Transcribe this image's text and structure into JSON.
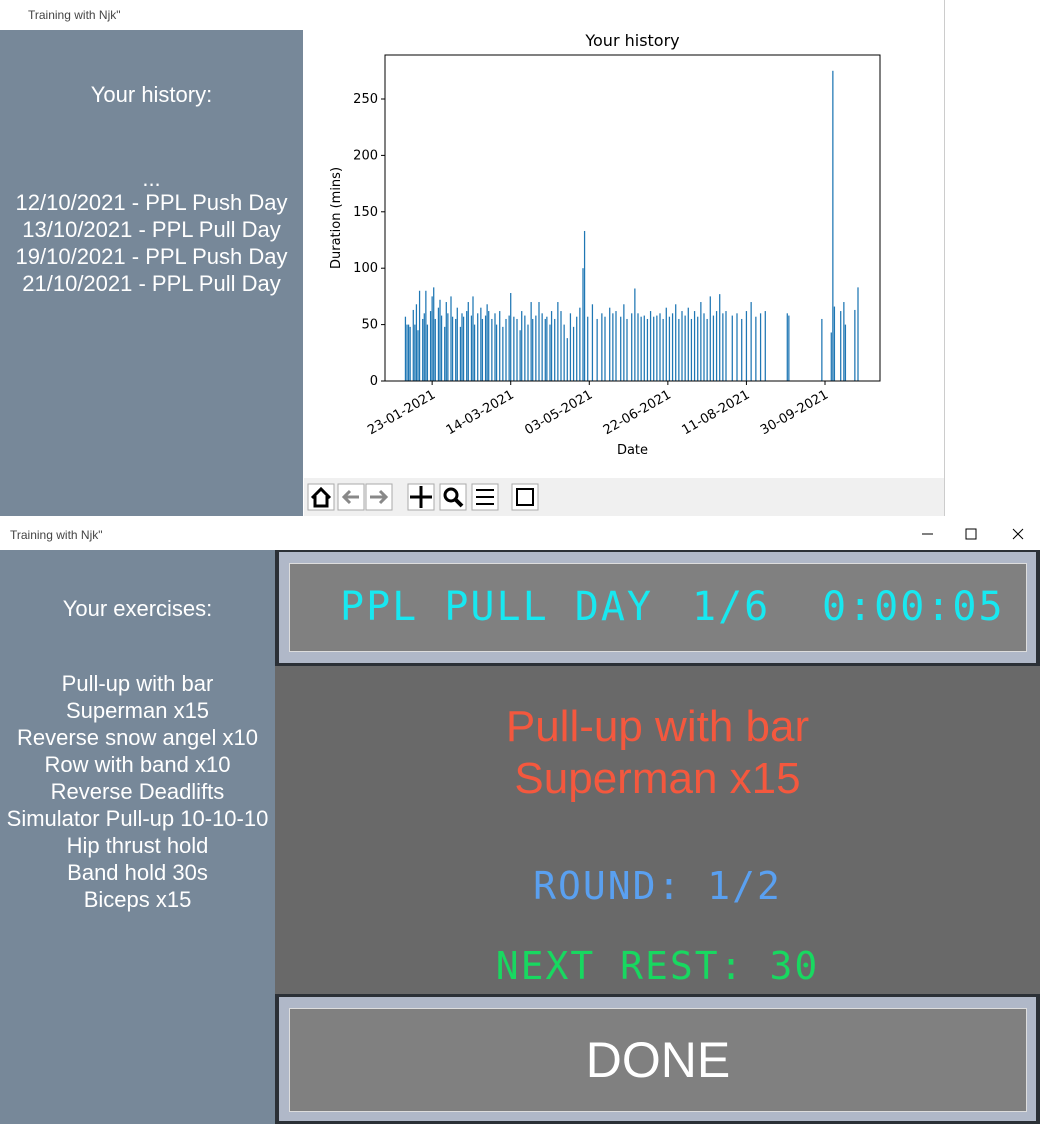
{
  "history_window": {
    "title": "Training with Njk\"",
    "heading": "Your history:",
    "ellipsis": "...",
    "entries": [
      "12/10/2021 - PPL Push Day",
      "13/10/2021 - PPL Pull Day",
      "19/10/2021 - PPL Push Day",
      "21/10/2021 - PPL Pull Day"
    ]
  },
  "chart_data": {
    "type": "bar",
    "title": "Your history",
    "xlabel": "Date",
    "ylabel": "Duration (mins)",
    "color": "#1f77b4",
    "x": [
      "2021-01-06",
      "2021-01-07",
      "2021-01-08",
      "2021-01-09",
      "2021-01-11",
      "2021-01-12",
      "2021-01-13",
      "2021-01-14",
      "2021-01-15",
      "2021-01-17",
      "2021-01-18",
      "2021-01-19",
      "2021-01-20",
      "2021-01-22",
      "2021-01-23",
      "2021-01-24",
      "2021-01-25",
      "2021-01-27",
      "2021-01-28",
      "2021-01-29",
      "2021-01-31",
      "2021-02-01",
      "2021-02-02",
      "2021-02-04",
      "2021-02-05",
      "2021-02-07",
      "2021-02-08",
      "2021-02-10",
      "2021-02-11",
      "2021-02-12",
      "2021-02-14",
      "2021-02-15",
      "2021-02-17",
      "2021-02-18",
      "2021-02-19",
      "2021-02-21",
      "2021-02-23",
      "2021-02-24",
      "2021-02-26",
      "2021-02-27",
      "2021-02-28",
      "2021-03-02",
      "2021-03-04",
      "2021-03-05",
      "2021-03-07",
      "2021-03-09",
      "2021-03-11",
      "2021-03-13",
      "2021-03-14",
      "2021-03-16",
      "2021-03-18",
      "2021-03-20",
      "2021-03-21",
      "2021-03-23",
      "2021-03-25",
      "2021-03-27",
      "2021-03-28",
      "2021-03-30",
      "2021-04-01",
      "2021-04-03",
      "2021-04-05",
      "2021-04-06",
      "2021-04-08",
      "2021-04-09",
      "2021-04-11",
      "2021-04-13",
      "2021-04-15",
      "2021-04-17",
      "2021-04-19",
      "2021-04-21",
      "2021-04-23",
      "2021-04-25",
      "2021-04-27",
      "2021-04-29",
      "2021-04-30",
      "2021-05-02",
      "2021-05-05",
      "2021-05-08",
      "2021-05-11",
      "2021-05-13",
      "2021-05-16",
      "2021-05-18",
      "2021-05-20",
      "2021-05-23",
      "2021-05-25",
      "2021-05-27",
      "2021-05-30",
      "2021-06-01",
      "2021-06-03",
      "2021-06-05",
      "2021-06-07",
      "2021-06-09",
      "2021-06-11",
      "2021-06-13",
      "2021-06-15",
      "2021-06-17",
      "2021-06-19",
      "2021-06-21",
      "2021-06-23",
      "2021-06-25",
      "2021-06-27",
      "2021-06-29",
      "2021-07-01",
      "2021-07-03",
      "2021-07-05",
      "2021-07-07",
      "2021-07-09",
      "2021-07-11",
      "2021-07-13",
      "2021-07-15",
      "2021-07-17",
      "2021-07-19",
      "2021-07-21",
      "2021-07-23",
      "2021-07-25",
      "2021-07-27",
      "2021-07-29",
      "2021-08-02",
      "2021-08-05",
      "2021-08-08",
      "2021-08-11",
      "2021-08-14",
      "2021-08-17",
      "2021-08-20",
      "2021-08-23",
      "2021-09-06",
      "2021-09-07",
      "2021-09-28",
      "2021-10-04",
      "2021-10-05",
      "2021-10-06",
      "2021-10-10",
      "2021-10-12",
      "2021-10-13",
      "2021-10-19",
      "2021-10-21"
    ],
    "values": [
      57,
      50,
      50,
      48,
      63,
      50,
      68,
      45,
      80,
      55,
      60,
      80,
      50,
      62,
      75,
      83,
      55,
      65,
      72,
      58,
      48,
      70,
      60,
      75,
      57,
      55,
      65,
      48,
      60,
      57,
      62,
      70,
      58,
      75,
      50,
      60,
      65,
      55,
      58,
      68,
      62,
      55,
      60,
      50,
      62,
      48,
      55,
      58,
      78,
      57,
      55,
      45,
      62,
      58,
      50,
      70,
      55,
      58,
      70,
      60,
      55,
      57,
      50,
      62,
      55,
      70,
      62,
      50,
      38,
      60,
      48,
      57,
      65,
      100,
      133,
      57,
      68,
      55,
      60,
      57,
      65,
      60,
      62,
      57,
      68,
      55,
      60,
      82,
      60,
      57,
      58,
      55,
      62,
      57,
      58,
      60,
      55,
      65,
      57,
      60,
      68,
      55,
      62,
      58,
      65,
      55,
      62,
      57,
      70,
      60,
      55,
      75,
      58,
      62,
      77,
      60,
      62,
      58,
      60,
      55,
      62,
      70,
      57,
      60,
      62,
      60,
      58,
      55,
      43,
      275,
      66,
      62,
      70,
      50,
      63,
      83
    ],
    "xlim": [
      "2020-12-24",
      "2021-11-04"
    ],
    "xticks": [
      {
        "value": "2021-01-23",
        "label": "23-01-2021"
      },
      {
        "value": "2021-03-14",
        "label": "14-03-2021"
      },
      {
        "value": "2021-05-03",
        "label": "03-05-2021"
      },
      {
        "value": "2021-06-22",
        "label": "22-06-2021"
      },
      {
        "value": "2021-08-11",
        "label": "11-08-2021"
      },
      {
        "value": "2021-09-30",
        "label": "30-09-2021"
      }
    ],
    "ylim": [
      0,
      289
    ],
    "yticks": [
      0,
      50,
      100,
      150,
      200,
      250
    ]
  },
  "workout_window": {
    "title": "Training with Njk\"",
    "heading": "Your exercises:",
    "exercises": [
      "Pull-up with bar",
      "Superman x15",
      "Reverse snow angel x10",
      "Row with band x10",
      "Reverse Deadlifts",
      "Simulator Pull-up 10-10-10",
      "Hip thrust hold",
      "Band hold 30s",
      "Biceps x15"
    ],
    "workout_name": "PPL PULL DAY",
    "progress": "1/6",
    "timer": "0:00:05",
    "current": [
      "Pull-up with bar",
      "Superman x15"
    ],
    "round": "ROUND: 1/2",
    "next_rest": "NEXT REST: 30",
    "button": "DONE"
  }
}
